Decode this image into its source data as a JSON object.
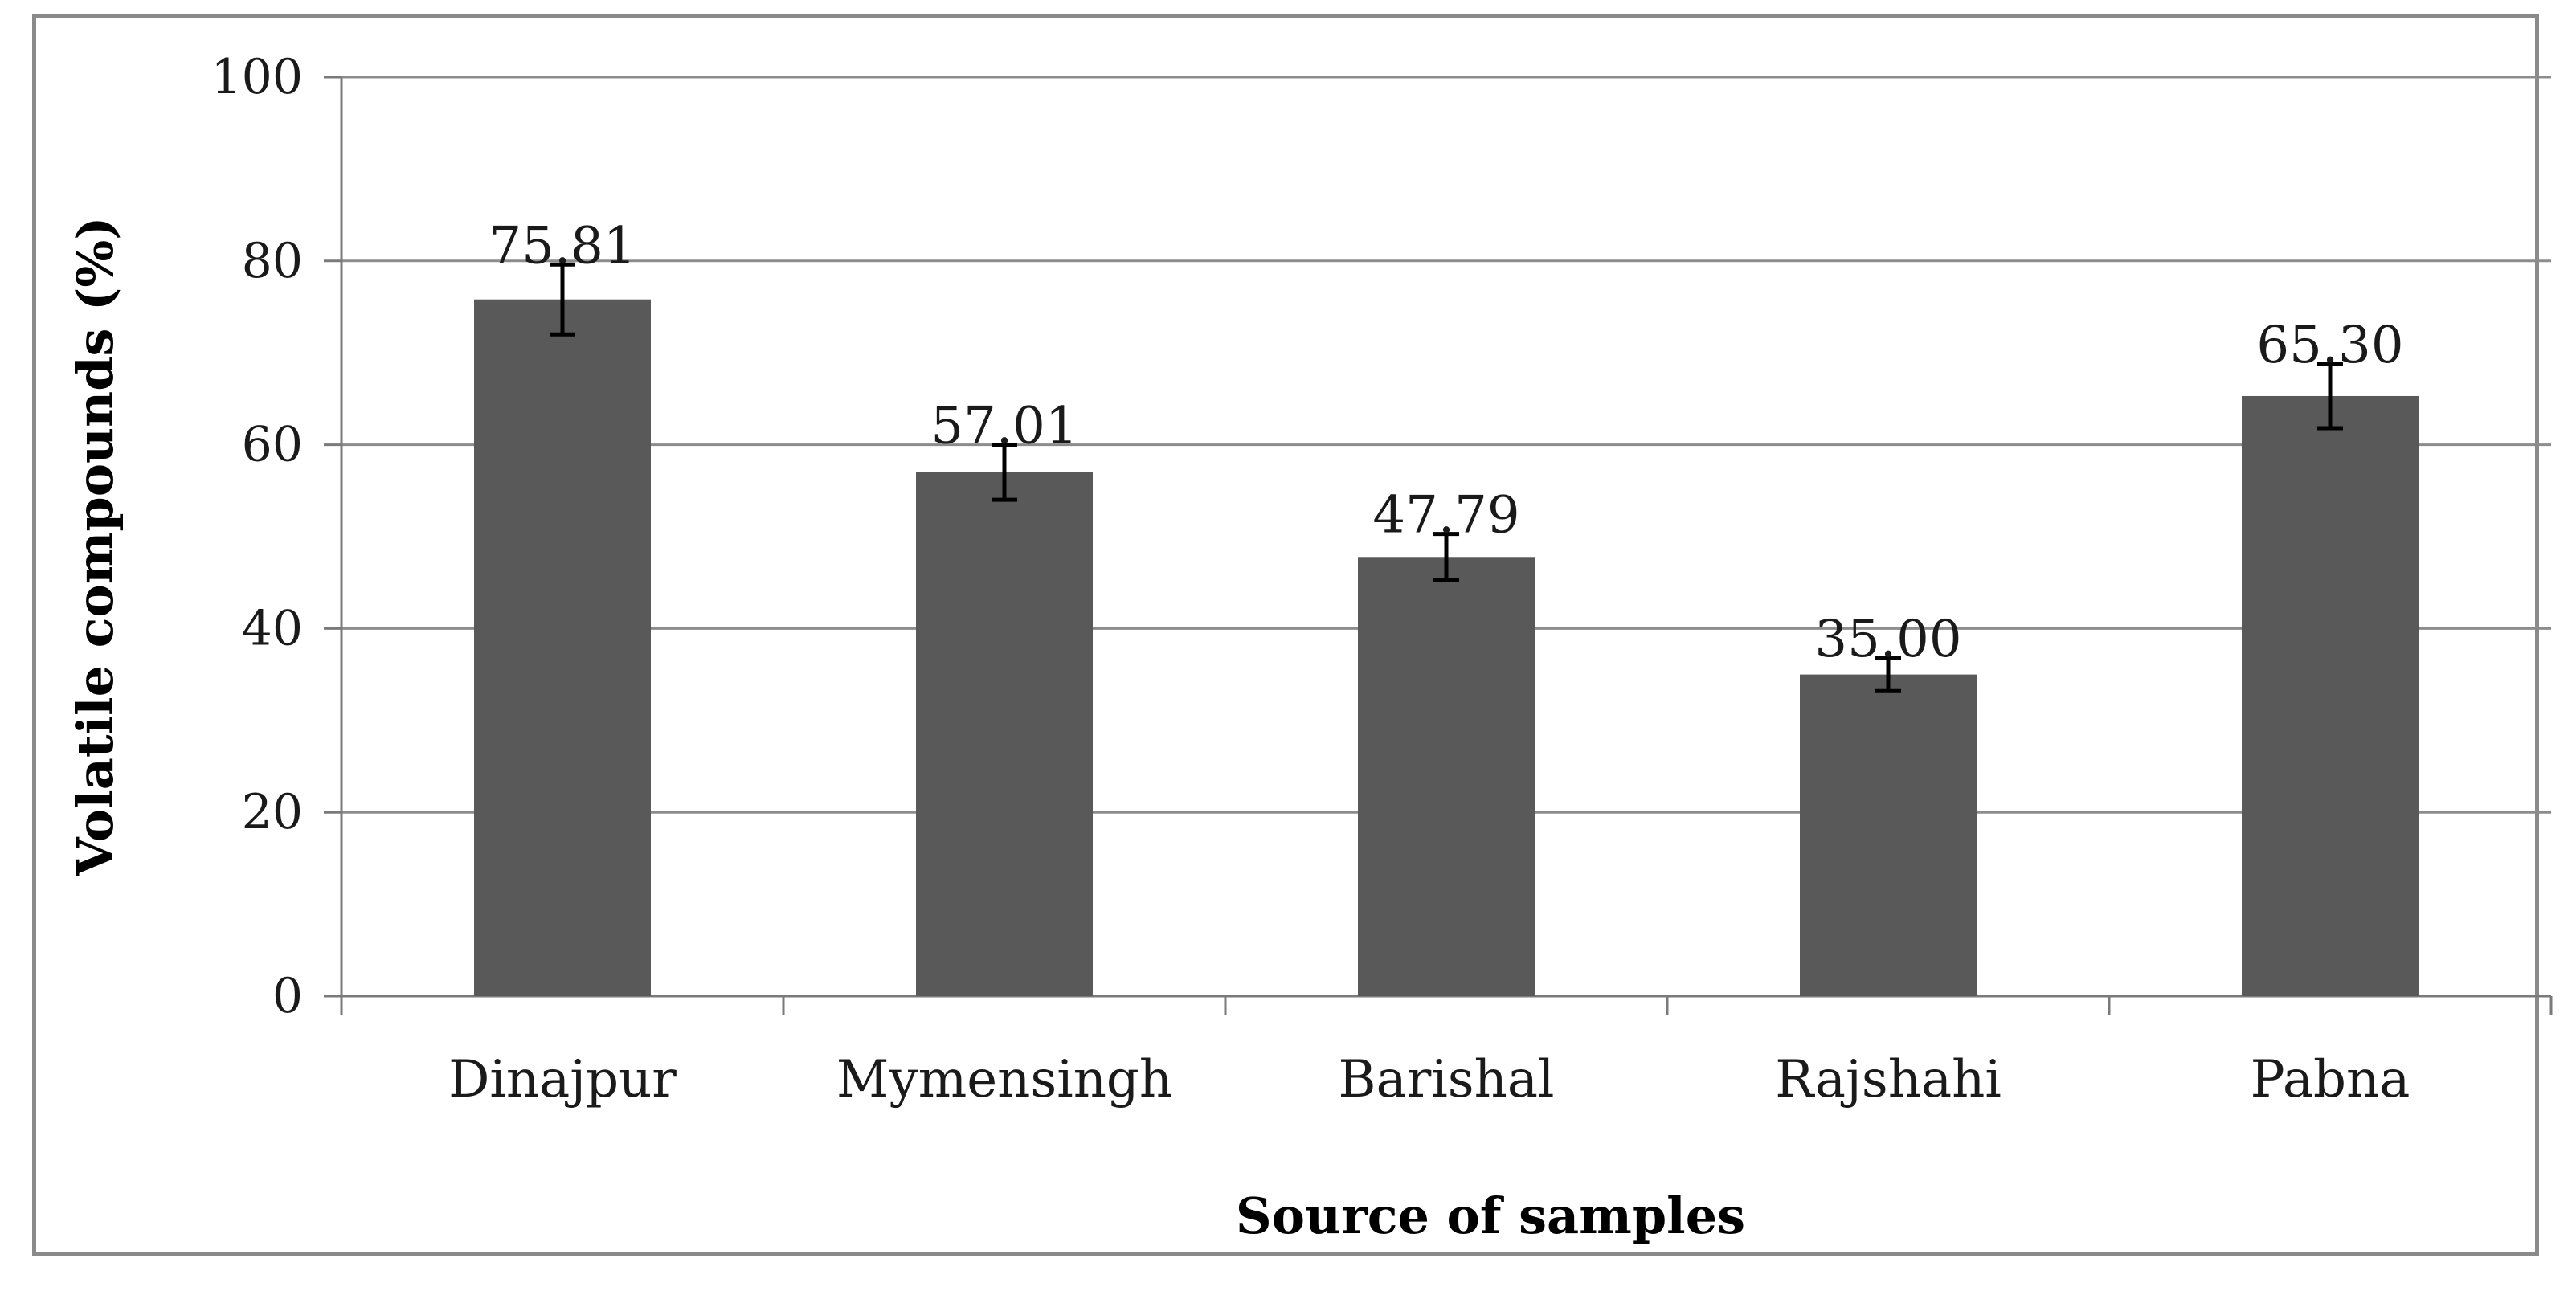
{
  "chart_data": {
    "type": "bar",
    "title": "",
    "xlabel": "Source of samples",
    "ylabel": "Volatile compounds (%)",
    "categories": [
      "Dinajpur",
      "Mymensingh",
      "Barishal",
      "Rajshahi",
      "Pabna"
    ],
    "values": [
      75.81,
      57.01,
      47.79,
      35.0,
      65.3
    ],
    "value_labels": [
      "75.81",
      "57.01",
      "47.79",
      "35.00",
      "65.30"
    ],
    "error": [
      3.8,
      3.0,
      2.5,
      1.8,
      3.5
    ],
    "ylim": [
      0,
      100
    ],
    "yticks": [
      0,
      20,
      40,
      60,
      80,
      100
    ],
    "ytick_labels": [
      "0",
      "20",
      "40",
      "60",
      "80",
      "100"
    ],
    "grid": true,
    "legend": "none",
    "bar_color": "#595959",
    "grid_color": "#8c8c8c",
    "error_bar_color": "#000000"
  }
}
